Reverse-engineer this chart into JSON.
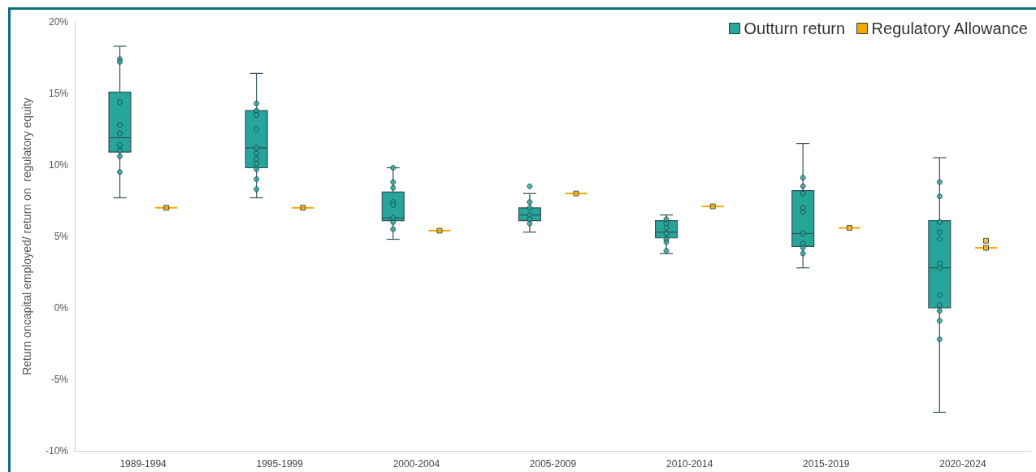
{
  "chart_data": {
    "type": "box",
    "ylabel": "Return oncapital employed/ return on  regulatory equity",
    "categories": [
      "1989-1994",
      "1995-1999",
      "2000-2004",
      "2005-2009",
      "2010-2014",
      "2015-2019",
      "2020-2024"
    ],
    "ylim": [
      -10,
      20
    ],
    "yticks": [
      {
        "value": -10,
        "label": "-10%"
      },
      {
        "value": -5,
        "label": "-5%"
      },
      {
        "value": 0,
        "label": "0%"
      },
      {
        "value": 5,
        "label": "5%"
      },
      {
        "value": 10,
        "label": "10%"
      },
      {
        "value": 15,
        "label": "15%"
      },
      {
        "value": 20,
        "label": "20%"
      }
    ],
    "legend": "top right",
    "grid": false,
    "series": [
      {
        "name": "Outturn return",
        "color": "#26a69a",
        "boxes": [
          {
            "low": 7.7,
            "q1": 10.9,
            "median": 11.9,
            "q3": 15.1,
            "high": 18.3
          },
          {
            "low": 7.7,
            "q1": 9.8,
            "median": 11.2,
            "q3": 13.8,
            "high": 16.4
          },
          {
            "low": 4.8,
            "q1": 6.1,
            "median": 6.3,
            "q3": 8.1,
            "high": 9.8
          },
          {
            "low": 5.3,
            "q1": 6.1,
            "median": 6.5,
            "q3": 7.0,
            "high": 8.0
          },
          {
            "low": 3.8,
            "q1": 4.9,
            "median": 5.3,
            "q3": 6.1,
            "high": 6.5
          },
          {
            "low": 2.8,
            "q1": 4.3,
            "median": 5.2,
            "q3": 8.2,
            "high": 11.5
          },
          {
            "low": -7.3,
            "q1": 0.0,
            "median": 2.8,
            "q3": 6.1,
            "high": 10.5
          }
        ]
      },
      {
        "name": "Regulatory Allowance",
        "color": "#f5a800",
        "boxes": [
          {
            "low": 7.0,
            "q1": 7.0,
            "median": 7.0,
            "q3": 7.0,
            "high": 7.0
          },
          {
            "low": 7.0,
            "q1": 7.0,
            "median": 7.0,
            "q3": 7.0,
            "high": 7.0
          },
          {
            "low": 5.4,
            "q1": 5.4,
            "median": 5.4,
            "q3": 5.4,
            "high": 5.4
          },
          {
            "low": 8.0,
            "q1": 8.0,
            "median": 8.0,
            "q3": 8.0,
            "high": 8.0
          },
          {
            "low": 7.1,
            "q1": 7.1,
            "median": 7.1,
            "q3": 7.1,
            "high": 7.1
          },
          {
            "low": 5.6,
            "q1": 5.6,
            "median": 5.6,
            "q3": 5.6,
            "high": 5.6
          },
          {
            "low": 4.2,
            "q1": 4.2,
            "median": 4.2,
            "q3": 4.2,
            "high": 4.2
          }
        ]
      },
      {
        "type": "scatter",
        "color": "#26a69a",
        "marker": "circle",
        "x": [
          "1989-1994",
          "1989-1994",
          "1989-1994",
          "1989-1994",
          "1989-1994",
          "1989-1994",
          "1989-1994",
          "1989-1994",
          "1989-1994",
          "1995-1999",
          "1995-1999",
          "1995-1999",
          "1995-1999",
          "1995-1999",
          "1995-1999",
          "1995-1999",
          "1995-1999",
          "1995-1999",
          "1995-1999",
          "1995-1999",
          "2000-2004",
          "2000-2004",
          "2000-2004",
          "2000-2004",
          "2000-2004",
          "2000-2004",
          "2000-2004",
          "2000-2004",
          "2005-2009",
          "2005-2009",
          "2005-2009",
          "2005-2009",
          "2005-2009",
          "2005-2009",
          "2010-2014",
          "2010-2014",
          "2010-2014",
          "2010-2014",
          "2010-2014",
          "2010-2014",
          "2010-2014",
          "2015-2019",
          "2015-2019",
          "2015-2019",
          "2015-2019",
          "2015-2019",
          "2015-2019",
          "2015-2019",
          "2015-2019",
          "2015-2019",
          "2020-2024",
          "2020-2024",
          "2020-2024",
          "2020-2024",
          "2020-2024",
          "2020-2024",
          "2020-2024",
          "2020-2024",
          "2020-2024",
          "2020-2024",
          "2020-2024",
          "2020-2024"
        ],
        "values": [
          17.4,
          17.2,
          14.4,
          12.8,
          12.2,
          11.4,
          11.0,
          10.6,
          9.5,
          14.3,
          13.8,
          13.5,
          12.5,
          11.2,
          10.8,
          10.4,
          10.1,
          9.7,
          9.0,
          8.3,
          9.8,
          8.8,
          8.4,
          7.4,
          7.2,
          6.3,
          6.0,
          5.5,
          8.5,
          7.4,
          7.0,
          6.5,
          6.2,
          5.9,
          6.2,
          5.9,
          5.6,
          5.2,
          4.8,
          4.6,
          4.0,
          9.1,
          8.5,
          8.0,
          7.0,
          6.7,
          5.2,
          4.5,
          4.2,
          3.8,
          8.8,
          7.8,
          6.0,
          5.3,
          4.8,
          3.1,
          2.8,
          0.9,
          0.2,
          -0.2,
          -0.9,
          -2.2
        ]
      },
      {
        "type": "scatter",
        "color": "#f5a800",
        "marker": "square",
        "x": [
          "1989-1994",
          "1995-1999",
          "2000-2004",
          "2005-2009",
          "2010-2014",
          "2015-2019",
          "2020-2024",
          "2020-2024"
        ],
        "values": [
          7.0,
          7.0,
          5.4,
          8.0,
          7.1,
          5.6,
          4.7,
          4.2
        ]
      }
    ]
  }
}
